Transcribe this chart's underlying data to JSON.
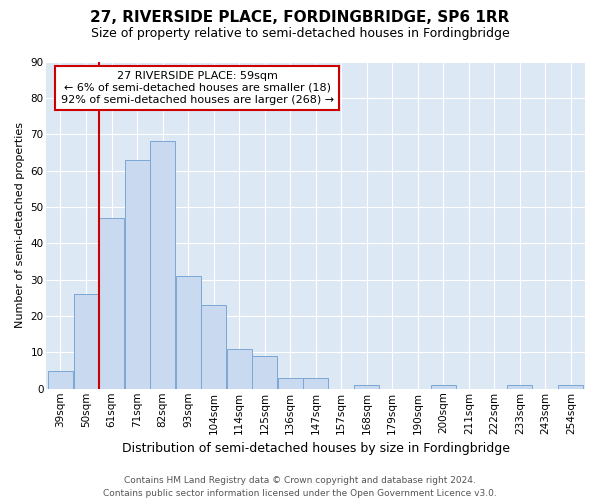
{
  "title": "27, RIVERSIDE PLACE, FORDINGBRIDGE, SP6 1RR",
  "subtitle": "Size of property relative to semi-detached houses in Fordingbridge",
  "xlabel": "Distribution of semi-detached houses by size in Fordingbridge",
  "ylabel": "Number of semi-detached properties",
  "footer_line1": "Contains HM Land Registry data © Crown copyright and database right 2024.",
  "footer_line2": "Contains public sector information licensed under the Open Government Licence v3.0.",
  "annotation_line1": "27 RIVERSIDE PLACE: 59sqm",
  "annotation_line2": "← 6% of semi-detached houses are smaller (18)",
  "annotation_line3": "92% of semi-detached houses are larger (268) →",
  "bar_labels": [
    "39sqm",
    "50sqm",
    "61sqm",
    "71sqm",
    "82sqm",
    "93sqm",
    "104sqm",
    "114sqm",
    "125sqm",
    "136sqm",
    "147sqm",
    "157sqm",
    "168sqm",
    "179sqm",
    "190sqm",
    "200sqm",
    "211sqm",
    "222sqm",
    "233sqm",
    "243sqm",
    "254sqm"
  ],
  "bar_values": [
    5,
    26,
    47,
    63,
    68,
    31,
    23,
    11,
    9,
    3,
    3,
    0,
    1,
    0,
    0,
    1,
    0,
    0,
    1,
    0,
    1
  ],
  "bar_color": "#c9d9f0",
  "bar_edge_color": "#7ba7d4",
  "vline_x": 1.5,
  "ylim": [
    0,
    90
  ],
  "yticks": [
    0,
    10,
    20,
    30,
    40,
    50,
    60,
    70,
    80,
    90
  ],
  "annotation_box_facecolor": "#ffffff",
  "annotation_box_edgecolor": "#cc0000",
  "vline_color": "#cc0000",
  "fig_facecolor": "#ffffff",
  "ax_facecolor": "#dde8f5",
  "grid_color": "#ffffff",
  "title_fontsize": 11,
  "subtitle_fontsize": 9,
  "ylabel_fontsize": 8,
  "xlabel_fontsize": 9,
  "tick_fontsize": 7.5,
  "footer_fontsize": 6.5,
  "ann_fontsize": 8
}
